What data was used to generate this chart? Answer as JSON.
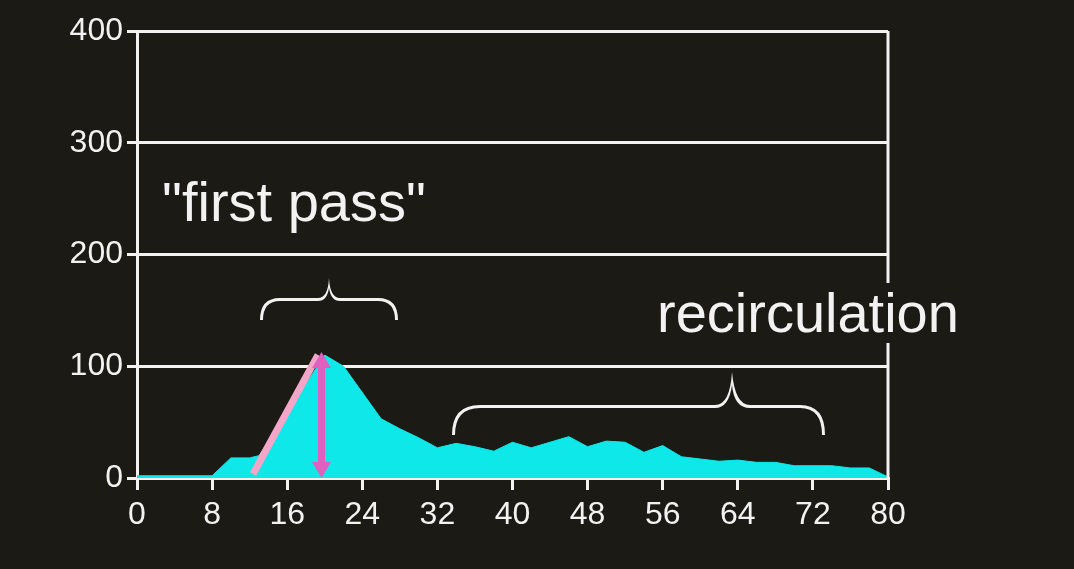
{
  "chart_data": {
    "type": "area",
    "x": [
      0,
      8,
      10,
      12,
      13,
      20,
      22,
      26,
      28,
      30,
      32,
      34,
      36,
      38,
      40,
      42,
      46,
      48,
      50,
      52,
      54,
      56,
      58,
      62,
      64,
      66,
      68,
      70,
      74,
      76,
      78,
      80
    ],
    "series": [
      {
        "color": "#0ee8e8",
        "values": [
          2,
          2,
          18,
          18,
          20,
          110,
          100,
          53,
          44,
          36,
          27,
          31,
          28,
          24,
          32,
          27,
          37,
          28,
          33,
          32,
          23,
          29,
          19,
          15,
          16,
          14,
          14,
          11,
          11,
          9,
          9,
          1
        ]
      }
    ],
    "xlim": [
      0,
      80
    ],
    "xticks": [
      0,
      8,
      16,
      24,
      32,
      40,
      48,
      56,
      64,
      72,
      80
    ],
    "ylim": [
      0,
      400
    ],
    "yticks": [
      0,
      100,
      200,
      300,
      400
    ],
    "grid": "y",
    "marker": "none",
    "annotations": [
      "\"first pass\"",
      "recirculation"
    ]
  }
}
